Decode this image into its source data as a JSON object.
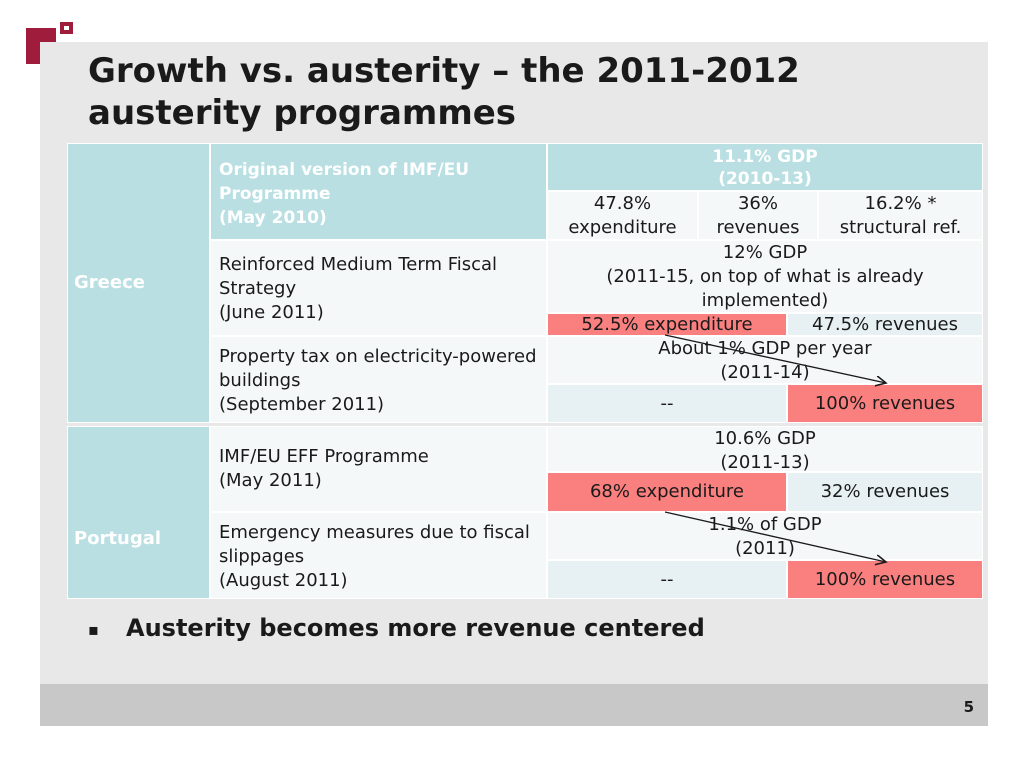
{
  "title": "Growth vs. austerity – the 2011-2012 austerity programmes",
  "page_number": "5",
  "bullet": "Austerity becomes more revenue centered",
  "colors": {
    "header_teal": "#b9dfe2",
    "highlight_red": "#fa7f7f",
    "logo_red": "#a01c3c"
  },
  "greece": {
    "country": "Greece",
    "programme_1": {
      "label": "Original version of IMF/EU Programme\n(May 2010)",
      "gdp": "11.1% GDP\n(2010-13)",
      "expenditure": "47.8%\nexpenditure",
      "revenues": "36%\nrevenues",
      "structural": "16.2% *\nstructural ref."
    },
    "programme_2": {
      "label": "Reinforced Medium Term Fiscal Strategy\n(June 2011)",
      "gdp": "12% GDP\n(2011-15, on top of what is already implemented)",
      "expenditure": "52.5% expenditure",
      "revenues": "47.5% revenues"
    },
    "programme_3": {
      "label": "Property tax on electricity-powered buildings\n(September 2011)",
      "gdp": "About 1% GDP per year\n(2011-14)",
      "expenditure": "--",
      "revenues": "100% revenues"
    }
  },
  "portugal": {
    "country": "Portugal",
    "programme_1": {
      "label": "IMF/EU EFF Programme\n(May 2011)",
      "gdp": "10.6% GDP\n(2011-13)",
      "expenditure": "68% expenditure",
      "revenues": "32% revenues"
    },
    "programme_2": {
      "label": "Emergency measures due to fiscal slippages\n(August 2011)",
      "gdp": "1.1% of GDP\n(2011)",
      "expenditure": "--",
      "revenues": "100% revenues"
    }
  }
}
